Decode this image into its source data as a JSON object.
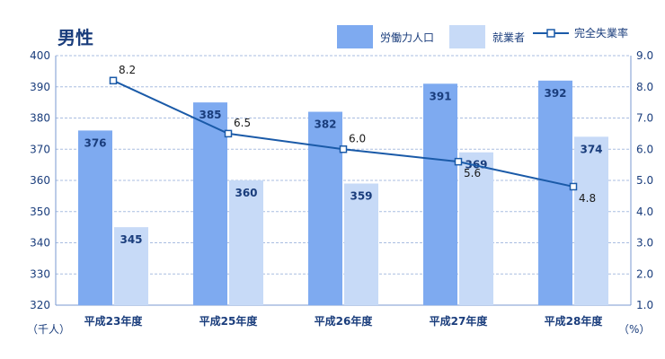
{
  "chart_data": {
    "type": "bar",
    "title": "男性",
    "categories": [
      "平成23年度",
      "平成25年度",
      "平成26年度",
      "平成27年度",
      "平成28年度"
    ],
    "series": [
      {
        "name": "労働力人口",
        "kind": "bar",
        "axis": "left",
        "color": "#7eaaf0",
        "values": [
          376,
          385,
          382,
          391,
          392
        ]
      },
      {
        "name": "就業者",
        "kind": "bar",
        "axis": "left",
        "color": "#c7daf7",
        "values": [
          345,
          360,
          359,
          369,
          374
        ]
      },
      {
        "name": "完全失業率",
        "kind": "line",
        "axis": "right",
        "color": "#1a5aa8",
        "values": [
          8.2,
          6.5,
          6.0,
          5.6,
          4.8
        ]
      }
    ],
    "ylim_left": [
      320,
      400
    ],
    "yticks_left": [
      "320",
      "330",
      "340",
      "350",
      "360",
      "370",
      "380",
      "390",
      "400"
    ],
    "ylim_right": [
      1.0,
      9.0
    ],
    "yticks_right": [
      "1.0",
      "2.0",
      "3.0",
      "4.0",
      "5.0",
      "6.0",
      "7.0",
      "8.0",
      "9.0"
    ],
    "ylabel_left": "（千人）",
    "ylabel_right": "（%）",
    "grid": "horizontal-dashed",
    "legend_position": "top-right"
  }
}
